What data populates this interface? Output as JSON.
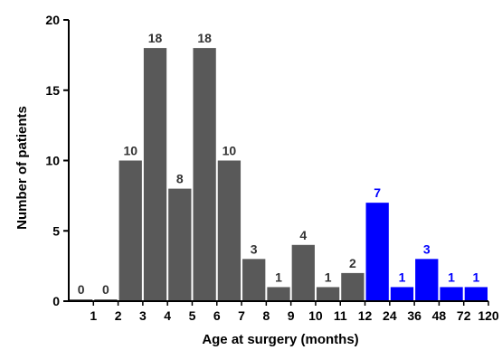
{
  "chart_data": {
    "type": "bar",
    "xlabel": "Age at surgery (months)",
    "ylabel": "Number of patients",
    "ylim": [
      0,
      20
    ],
    "yticks": [
      0,
      5,
      10,
      15,
      20
    ],
    "xtick_labels": [
      "1",
      "2",
      "3",
      "4",
      "5",
      "6",
      "7",
      "8",
      "9",
      "10",
      "11",
      "12",
      "24",
      "36",
      "48",
      "72",
      "120"
    ],
    "bars": [
      {
        "range": "0-1",
        "value": 0,
        "group": "under12"
      },
      {
        "range": "1-2",
        "value": 0,
        "group": "under12"
      },
      {
        "range": "2-3",
        "value": 10,
        "group": "under12"
      },
      {
        "range": "3-4",
        "value": 18,
        "group": "under12"
      },
      {
        "range": "4-5",
        "value": 8,
        "group": "under12"
      },
      {
        "range": "5-6",
        "value": 18,
        "group": "under12"
      },
      {
        "range": "6-7",
        "value": 10,
        "group": "under12"
      },
      {
        "range": "7-8",
        "value": 3,
        "group": "under12"
      },
      {
        "range": "8-9",
        "value": 1,
        "group": "under12"
      },
      {
        "range": "9-10",
        "value": 4,
        "group": "under12"
      },
      {
        "range": "10-11",
        "value": 1,
        "group": "under12"
      },
      {
        "range": "11-12",
        "value": 2,
        "group": "under12"
      },
      {
        "range": "12-24",
        "value": 7,
        "group": "over12"
      },
      {
        "range": "24-36",
        "value": 1,
        "group": "over12"
      },
      {
        "range": "36-48",
        "value": 3,
        "group": "over12"
      },
      {
        "range": "48-72",
        "value": 1,
        "group": "over12"
      },
      {
        "range": "72-120",
        "value": 1,
        "group": "over12"
      }
    ],
    "colors": {
      "under12": "#595959",
      "over12": "#0000ff",
      "under12_label": "#333333",
      "over12_label": "#0000ff"
    },
    "grid": false,
    "legend": "none"
  }
}
